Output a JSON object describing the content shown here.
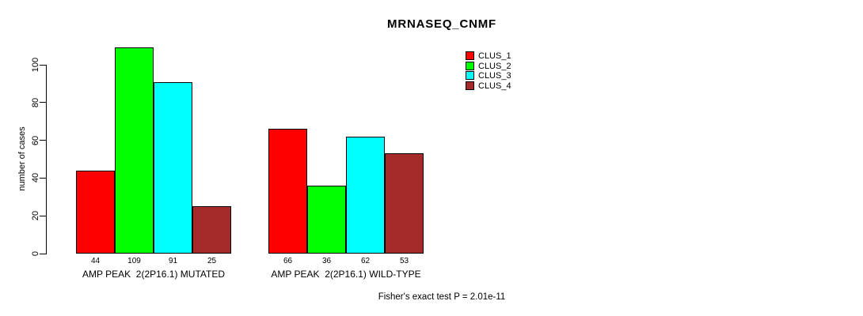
{
  "chart_data": {
    "type": "bar",
    "title": "MRNASEQ_CNMF",
    "ylabel": "number of cases",
    "xlabel": "",
    "categories": [
      "AMP PEAK  2(2P16.1) MUTATED",
      "AMP PEAK  2(2P16.1) WILD-TYPE"
    ],
    "series": [
      {
        "name": "CLUS_1",
        "color": "#ff0000",
        "values": [
          44,
          66
        ]
      },
      {
        "name": "CLUS_2",
        "color": "#00ff00",
        "values": [
          109,
          36
        ]
      },
      {
        "name": "CLUS_3",
        "color": "#00ffff",
        "values": [
          91,
          62
        ]
      },
      {
        "name": "CLUS_4",
        "color": "#a52a2a",
        "values": [
          25,
          53
        ]
      }
    ],
    "yticks": [
      0,
      20,
      40,
      60,
      80,
      100
    ],
    "ylim": [
      0,
      109
    ],
    "grid": false,
    "bar_value_labels_shown": true,
    "legend_position": "top-right",
    "legend_entries": [
      "CLUS_1",
      "CLUS_2",
      "CLUS_3",
      "CLUS_4"
    ],
    "annotation": "Fisher's exact test P = 2.01e-11"
  },
  "colors": {
    "background": "#ffffff",
    "axis": "#000000",
    "text": "#000000"
  }
}
